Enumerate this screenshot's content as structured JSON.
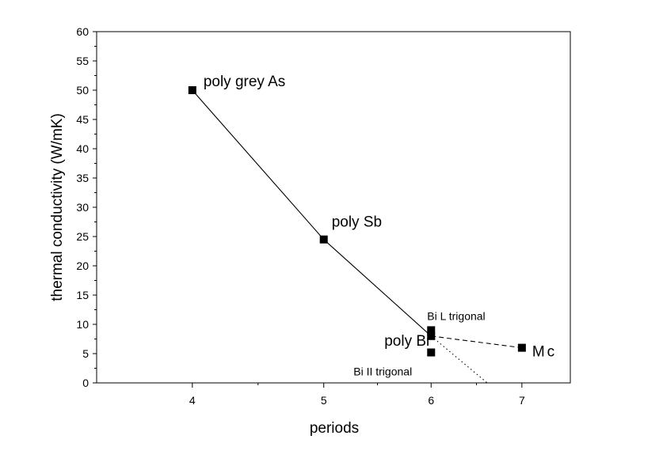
{
  "chart_data": {
    "type": "scatter",
    "xlabel": "periods",
    "ylabel": "thermal conductivity (W/mK)",
    "x_axis": {
      "scale": "log",
      "range": [
        3.4,
        7.6
      ],
      "ticks": [
        4,
        5,
        6,
        7
      ],
      "tick_labels": [
        "4",
        "5",
        "6",
        "7"
      ]
    },
    "y_axis": {
      "range": [
        0,
        60
      ],
      "ticks": [
        0,
        5,
        10,
        15,
        20,
        25,
        30,
        35,
        40,
        45,
        50,
        55,
        60
      ],
      "tick_labels": [
        "0",
        "5",
        "10",
        "15",
        "20",
        "25",
        "30",
        "35",
        "40",
        "45",
        "50",
        "55",
        "60"
      ]
    },
    "grid": false,
    "legend": "none",
    "points": [
      {
        "x": 4,
        "y": 50,
        "label": "poly grey As"
      },
      {
        "x": 5,
        "y": 24.5,
        "label": "poly Sb"
      },
      {
        "x": 6,
        "y": 8,
        "label": "poly Bi"
      },
      {
        "x": 6,
        "y": 9,
        "label": "Bi L trigonal"
      },
      {
        "x": 6,
        "y": 5.2,
        "label": "Bi II trigonal"
      },
      {
        "x": 7,
        "y": 6,
        "label": "Mc"
      }
    ],
    "lines": [
      {
        "style": "solid",
        "x": [
          4,
          5,
          6
        ],
        "y": [
          50,
          24.5,
          8
        ]
      },
      {
        "style": "dashed",
        "x": [
          6,
          7
        ],
        "y": [
          8,
          6
        ]
      },
      {
        "style": "dotted",
        "x": [
          6,
          6.6
        ],
        "y": [
          8,
          0
        ]
      }
    ]
  }
}
